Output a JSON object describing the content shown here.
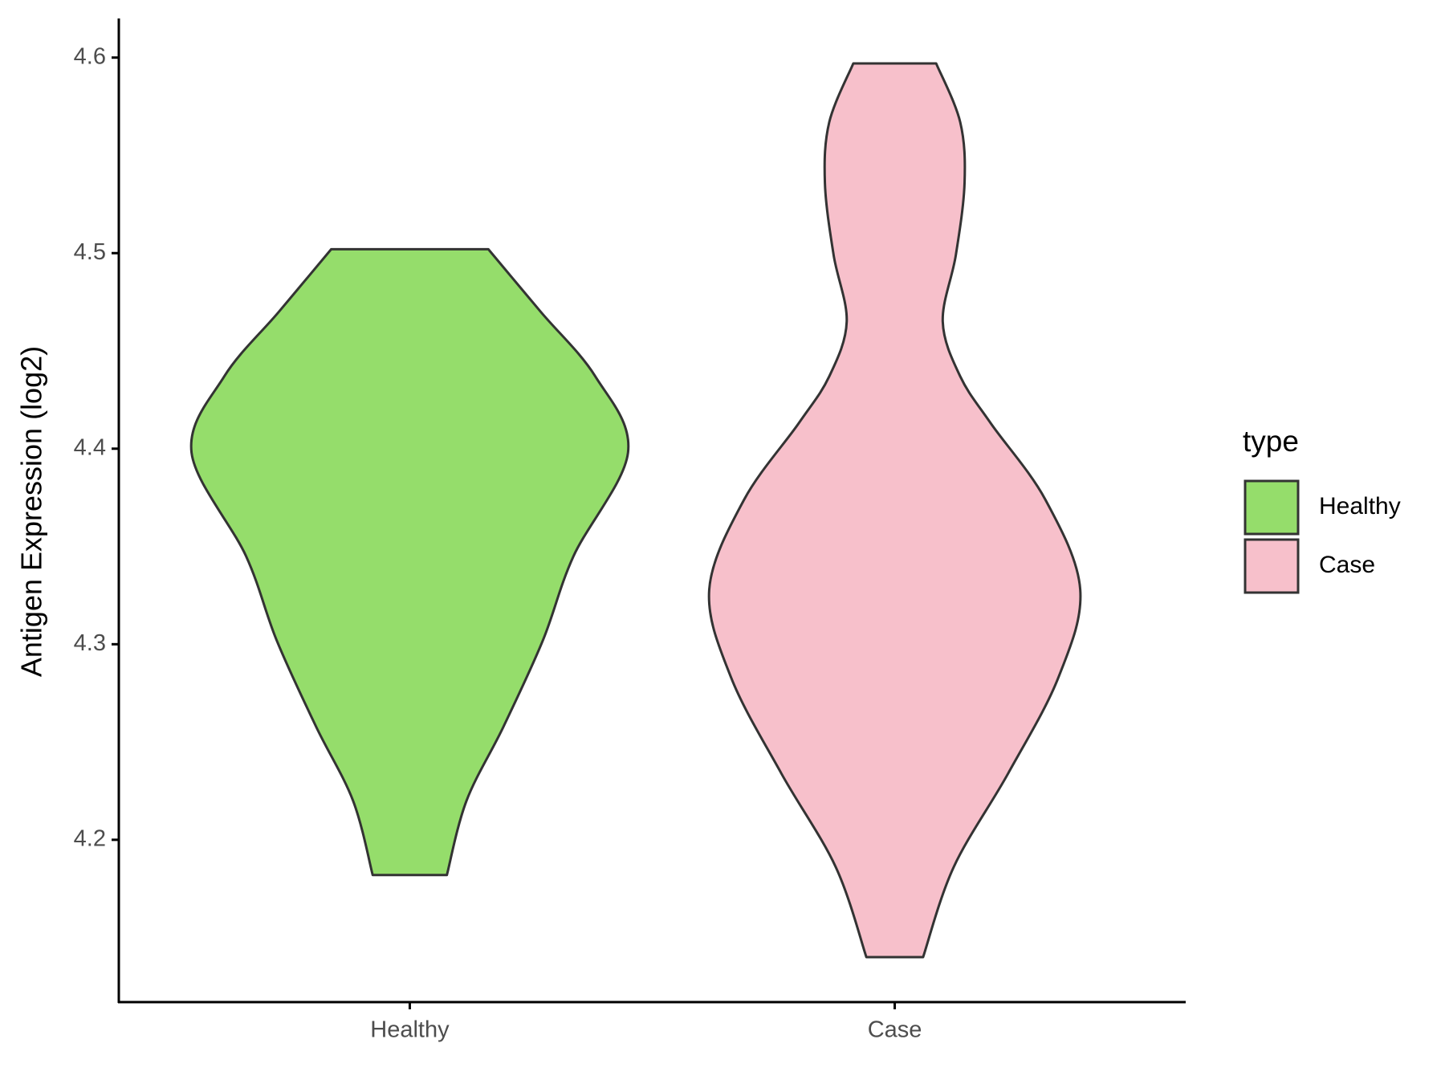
{
  "chart_data": {
    "type": "violin",
    "ylabel": "Antigen Expression (log2)",
    "categories": [
      "Healthy",
      "Case"
    ],
    "ylim": [
      4.117,
      4.62
    ],
    "yticks": [
      4.2,
      4.3,
      4.4,
      4.5,
      4.6
    ],
    "grid": false,
    "legend_title": "type",
    "legend": "right",
    "series": [
      {
        "name": "Healthy",
        "color": "#95dd6b",
        "y": [
          4.502,
          4.47,
          4.437,
          4.398,
          4.345,
          4.302,
          4.258,
          4.22,
          4.182
        ],
        "density": [
          0.36,
          0.6,
          0.85,
          1.0,
          0.75,
          0.61,
          0.43,
          0.26,
          0.17
        ]
      },
      {
        "name": "Case",
        "color": "#f7c0cb",
        "y": [
          4.597,
          4.567,
          4.536,
          4.499,
          4.465,
          4.437,
          4.413,
          4.374,
          4.328,
          4.283,
          4.234,
          4.186,
          4.14
        ],
        "density": [
          0.19,
          0.3,
          0.32,
          0.28,
          0.22,
          0.3,
          0.44,
          0.69,
          0.85,
          0.75,
          0.52,
          0.27,
          0.13
        ]
      }
    ]
  }
}
